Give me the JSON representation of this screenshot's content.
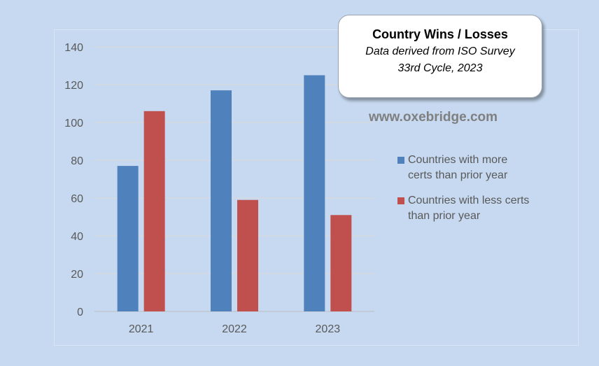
{
  "title_box": {
    "title": "Country Wins / Losses",
    "subtitle_line1": "Data derived from ISO Survey",
    "subtitle_line2": "33rd Cycle, 2023"
  },
  "website": "www.oxebridge.com",
  "colors": {
    "background": "#c6d9f0",
    "series_more": "#4f81bd",
    "series_less": "#c0504d",
    "grid": "#d9d9d9"
  },
  "chart_data": {
    "type": "bar",
    "categories": [
      "2021",
      "2022",
      "2023"
    ],
    "series": [
      {
        "name": "Countries with more certs than prior year",
        "values": [
          77,
          117,
          125
        ]
      },
      {
        "name": "Countries with less certs than prior year",
        "values": [
          106,
          59,
          51
        ]
      }
    ],
    "ylim": [
      0,
      140
    ],
    "yticks": [
      0,
      20,
      40,
      60,
      80,
      100,
      120,
      140
    ],
    "grid": true,
    "legend_position": "right"
  },
  "legend": {
    "items": [
      {
        "line1": "Countries with more",
        "line2": "certs than prior year"
      },
      {
        "line1": "Countries with less certs",
        "line2": "than prior year"
      }
    ]
  }
}
